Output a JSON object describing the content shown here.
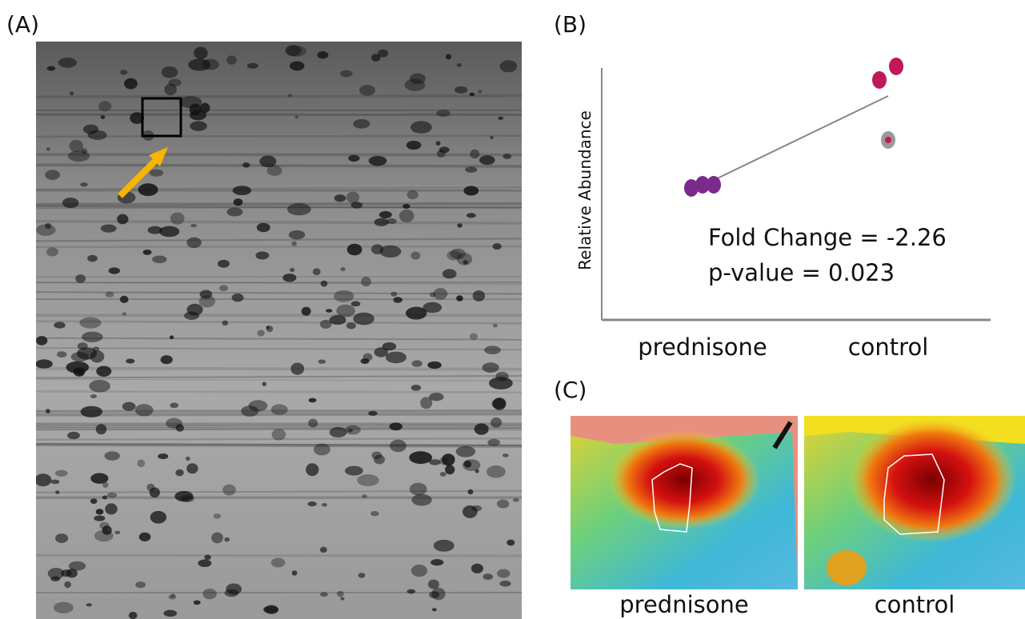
{
  "panels": {
    "a": {
      "label": "(A)"
    },
    "b": {
      "label": "(B)",
      "y_axis_label": "Relative Abundance",
      "categories": [
        "prednisone",
        "control"
      ],
      "annotations": [
        "Fold Change = -2.26",
        "p-value = 0.023"
      ]
    },
    "c": {
      "label": "(C)",
      "captions": [
        "prednisone",
        "control"
      ]
    }
  }
}
